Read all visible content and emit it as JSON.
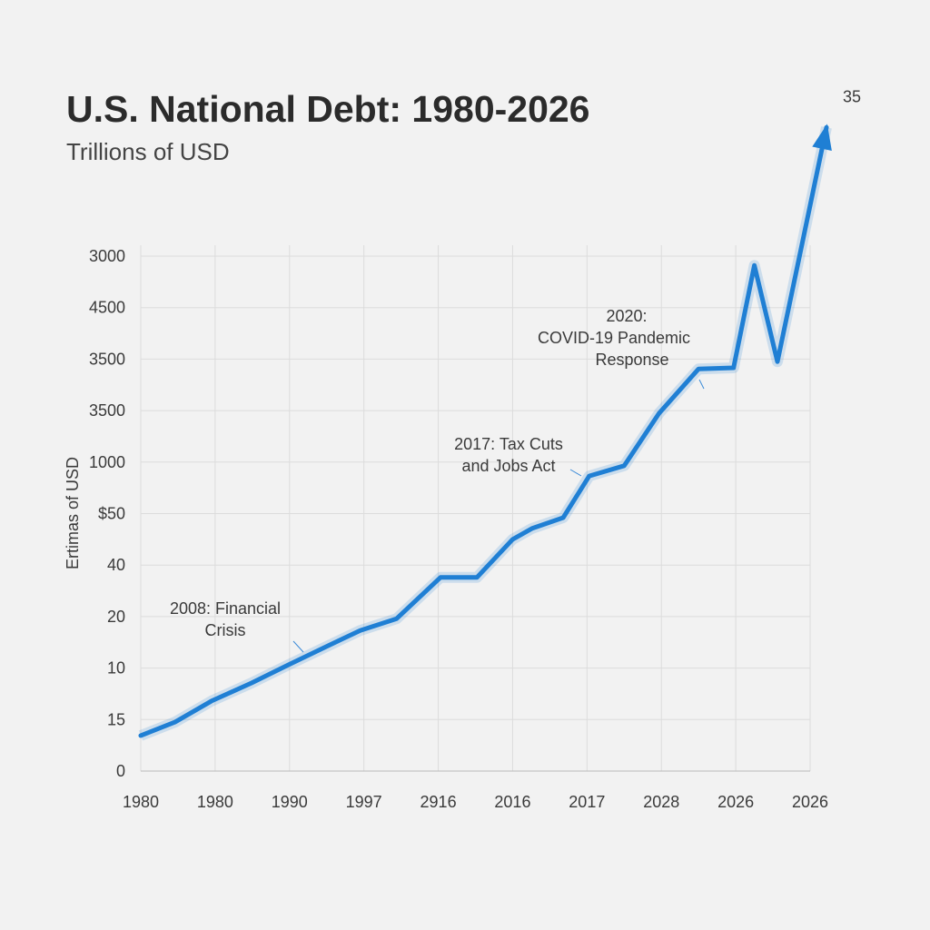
{
  "chart_data": {
    "type": "line",
    "title": "U.S. National Debt: 1980-2026",
    "subtitle": "Trillions of USD",
    "y_label": "Ertimas of USD",
    "xlim": [
      0,
      9
    ],
    "ylim": [
      0,
      10
    ],
    "xticks": [
      {
        "value": 0,
        "label": "1980"
      },
      {
        "value": 1,
        "label": "1980"
      },
      {
        "value": 2,
        "label": "1990"
      },
      {
        "value": 3,
        "label": "1997"
      },
      {
        "value": 4,
        "label": "2916"
      },
      {
        "value": 5,
        "label": "2016"
      },
      {
        "value": 6,
        "label": "2017"
      },
      {
        "value": 7,
        "label": "2028"
      },
      {
        "value": 8,
        "label": "2026"
      },
      {
        "value": 9,
        "label": "2026"
      }
    ],
    "yticks": [
      {
        "value": 0,
        "label": "0"
      },
      {
        "value": 1,
        "label": "15"
      },
      {
        "value": 2,
        "label": "10"
      },
      {
        "value": 3,
        "label": "20"
      },
      {
        "value": 4,
        "label": "40"
      },
      {
        "value": 5,
        "label": "$50"
      },
      {
        "value": 6,
        "label": "1000"
      },
      {
        "value": 7,
        "label": "3500"
      },
      {
        "value": 8,
        "label": "3500"
      },
      {
        "value": 9,
        "label": "4500"
      },
      {
        "value": 10,
        "label": "3000"
      }
    ],
    "grid": true,
    "series": [
      {
        "name": "U.S. National Debt",
        "color": "#1f7fd4",
        "x": [
          0,
          0.46,
          0.95,
          1.49,
          1.98,
          2.5,
          2.95,
          3.44,
          4.03,
          4.52,
          5.0,
          5.26,
          5.68,
          6.03,
          6.5,
          6.97,
          7.5,
          7.97,
          8.25,
          8.56,
          9.22
        ],
        "values": [
          0.69,
          0.95,
          1.36,
          1.71,
          2.06,
          2.42,
          2.73,
          2.96,
          3.76,
          3.76,
          4.5,
          4.71,
          4.92,
          5.73,
          5.93,
          6.95,
          7.81,
          7.83,
          9.82,
          7.95,
          12.5
        ]
      }
    ],
    "end_label": "35",
    "annotations": [
      {
        "lines": [
          "2008: Financial",
          "Crisis"
        ]
      },
      {
        "lines": [
          "2017: Tax Cuts",
          "and Jobs Act"
        ]
      },
      {
        "lines": [
          "2020:",
          "COVID-19 Pandemic",
          "Response"
        ]
      }
    ]
  }
}
